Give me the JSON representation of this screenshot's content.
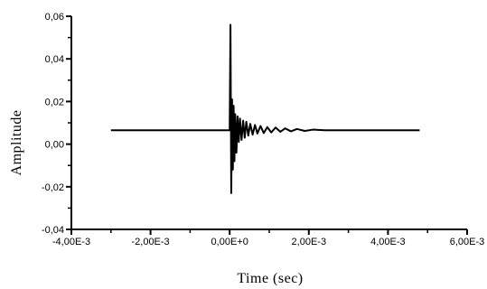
{
  "chart_data": {
    "type": "line",
    "title": "",
    "xlabel": "Time (sec)",
    "ylabel": "Amplitude",
    "xlim": [
      -0.004,
      0.006
    ],
    "ylim": [
      -0.04,
      0.06
    ],
    "x_ticks": [
      -0.004,
      -0.002,
      0.0,
      0.002,
      0.004,
      0.006
    ],
    "x_tick_labels": [
      "-4,00E-3",
      "-2,00E-3",
      "0,00E+0",
      "2,00E-3",
      "4,00E-3",
      "6,00E-3"
    ],
    "y_ticks": [
      -0.04,
      -0.02,
      0.0,
      0.02,
      0.04,
      0.06
    ],
    "y_tick_labels": [
      "-0,04",
      "-0,02",
      "0,00",
      "0,02",
      "0,04",
      "0,06"
    ],
    "grid": false,
    "legend": "none",
    "baseline": 0.0065,
    "series": [
      {
        "x": [
          -0.003,
          0.0,
          2e-05,
          4e-05,
          6e-05,
          8e-05,
          0.0001,
          0.00012,
          0.00014,
          0.00017,
          0.0002,
          0.00023,
          0.00026,
          0.0003,
          0.00034,
          0.00038,
          0.00042,
          0.00047,
          0.00052,
          0.00058,
          0.00064,
          0.0007,
          0.00078,
          0.00086,
          0.00095,
          0.00105,
          0.00116,
          0.00128,
          0.0014,
          0.00155,
          0.0017,
          0.0019,
          0.0021,
          0.0024,
          0.0048
        ],
        "y": [
          0.0065,
          0.0065,
          0.056,
          -0.023,
          0.021,
          -0.012,
          0.018,
          -0.008,
          0.014,
          -0.004,
          0.013,
          0.001,
          0.012,
          0.002,
          0.011,
          0.003,
          0.0105,
          0.004,
          0.0095,
          0.0045,
          0.009,
          0.005,
          0.0085,
          0.0052,
          0.008,
          0.0055,
          0.0078,
          0.0058,
          0.0074,
          0.006,
          0.0071,
          0.0062,
          0.0068,
          0.0065,
          0.0065
        ]
      }
    ]
  }
}
